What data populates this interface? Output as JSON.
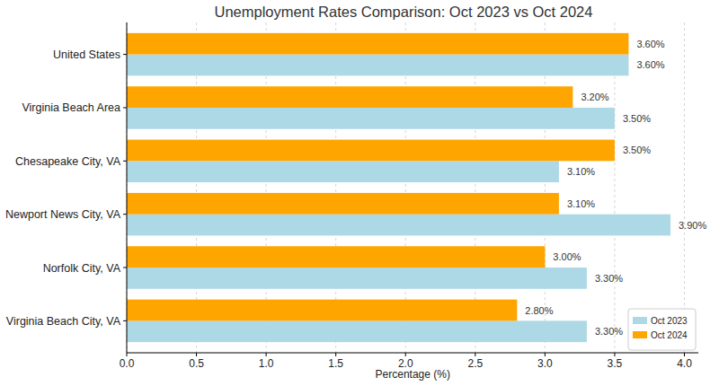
{
  "chart_data": {
    "type": "bar",
    "orientation": "horizontal",
    "title": "Unemployment Rates Comparison: Oct 2023 vs Oct 2024",
    "x_label": "Percentage (%)",
    "categories": [
      "United States",
      "Virginia Beach Area",
      "Chesapeake City, VA",
      "Newport News City, VA",
      "Norfolk City, VA",
      "Virginia Beach City, VA"
    ],
    "series": [
      {
        "name": "Oct 2023",
        "color": "#add8e6",
        "values": [
          3.6,
          3.5,
          3.1,
          3.9,
          3.3,
          3.3
        ],
        "value_labels": [
          "3.60%",
          "3.50%",
          "3.10%",
          "3.90%",
          "3.30%",
          "3.30%"
        ]
      },
      {
        "name": "Oct 2024",
        "color": "#ffa500",
        "values": [
          3.6,
          3.2,
          3.5,
          3.1,
          3.0,
          2.8
        ],
        "value_labels": [
          "3.60%",
          "3.20%",
          "3.50%",
          "3.10%",
          "3.00%",
          "2.80%"
        ]
      }
    ],
    "xlim": [
      0,
      4.1
    ],
    "xticks": [
      {
        "value": 0,
        "label": "0.0"
      },
      {
        "value": 0.5,
        "label": "0.5"
      },
      {
        "value": 1,
        "label": "1.0"
      },
      {
        "value": 1.5,
        "label": "1.5"
      },
      {
        "value": 2,
        "label": "2.0"
      },
      {
        "value": 2.5,
        "label": "2.5"
      },
      {
        "value": 3,
        "label": "3.0"
      },
      {
        "value": 3.5,
        "label": "3.5"
      },
      {
        "value": 4,
        "label": "4.0"
      }
    ],
    "grid": true,
    "legend": "lower right",
    "data_labels": true
  }
}
